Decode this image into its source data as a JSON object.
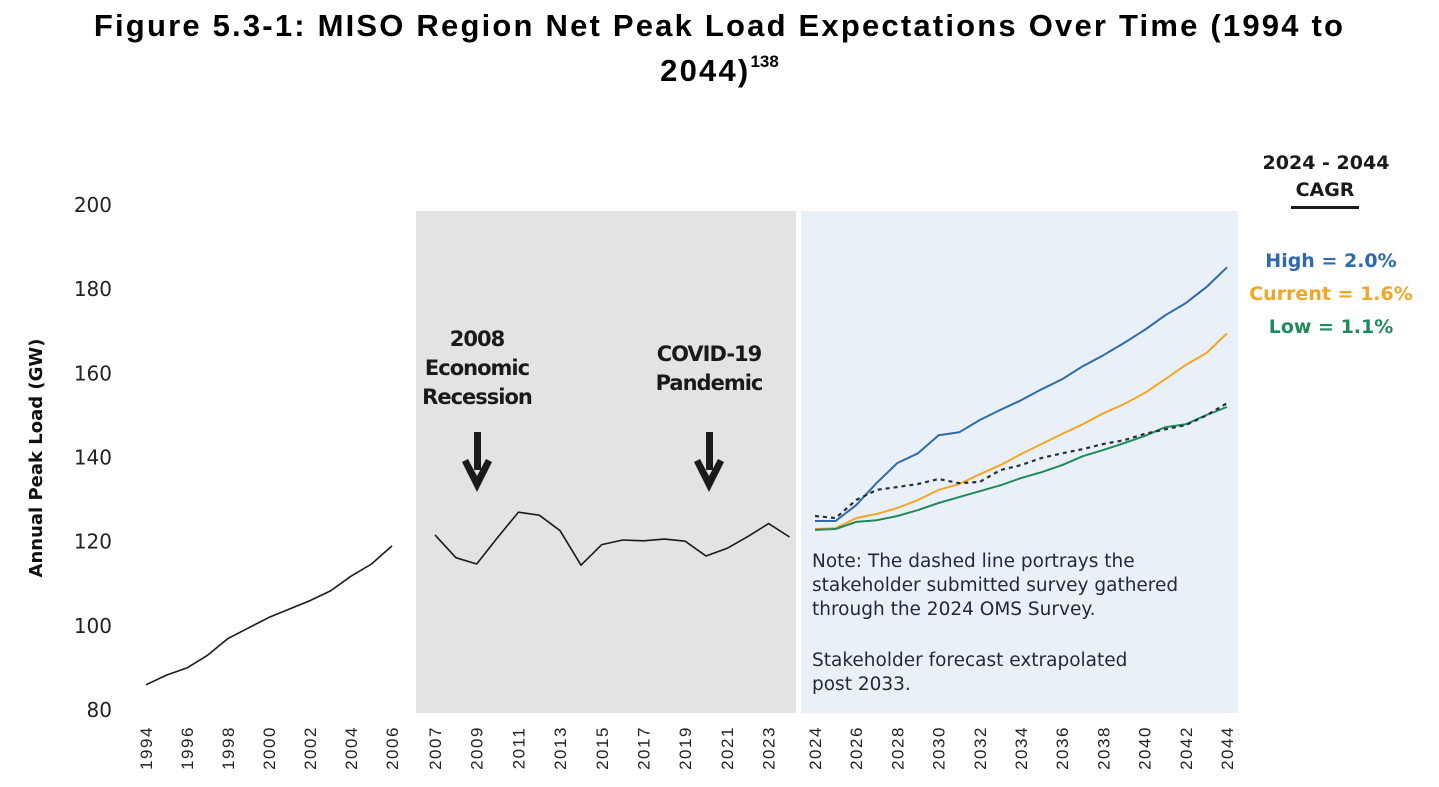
{
  "figure": {
    "title_main": "Figure 5.3-1: MISO Region Net Peak Load Expectations Over Time (1994 to",
    "title_cont": "2044)",
    "footnote_ref": "138"
  },
  "colors": {
    "historical": "#1a1a1a",
    "high": "#2f69ac",
    "current": "#f5a524",
    "low": "#1f8a5b",
    "survey": "#2b2f3a",
    "gray_panel": "#e3e3e5",
    "forecast_panel": "#eaf0f7"
  },
  "annotations": {
    "recession": [
      "2008",
      "Economic",
      "Recession"
    ],
    "covid": [
      "COVID-19",
      "Pandemic"
    ],
    "note_lines": [
      "Note: The dashed line portrays the",
      "stakeholder submitted survey gathered",
      "through the 2024 OMS Survey.",
      "",
      "Stakeholder forecast extrapolated",
      "post 2033."
    ]
  },
  "legend": {
    "heading": [
      "2024 - 2044",
      "CAGR"
    ],
    "items": [
      {
        "key": "high",
        "label": "High = 2.0%"
      },
      {
        "key": "current",
        "label": "Current = 1.6%"
      },
      {
        "key": "low",
        "label": "Low = 1.1%"
      }
    ]
  },
  "chart_data": {
    "type": "line",
    "title": "MISO Region Net Peak Load Expectations Over Time (1994 to 2044)",
    "xlabel": "",
    "ylabel": "Annual Peak Load (GW)",
    "ylim": [
      80,
      200
    ],
    "yticks": [
      80,
      100,
      120,
      140,
      160,
      180,
      200
    ],
    "grid": false,
    "legend_position": "right",
    "panels": [
      {
        "name": "historical-early",
        "xticks": [
          "1994",
          "1996",
          "1998",
          "2000",
          "2002",
          "2004",
          "2006"
        ],
        "series": [
          {
            "name": "Historical",
            "key": "historical",
            "x": [
              1994,
              1995,
              1996,
              1997,
              1998,
              1999,
              2000,
              2001,
              2002,
              2003,
              2004,
              2005,
              2006
            ],
            "values": [
              86,
              88.3,
              90,
              93,
              97,
              99.5,
              102,
              104,
              106,
              108.3,
              111.8,
              114.7,
              119
            ]
          }
        ]
      },
      {
        "name": "historical-recent",
        "xticks": [
          "2007",
          "2009",
          "2011",
          "2013",
          "2015",
          "2017",
          "2019",
          "2021",
          "2023"
        ],
        "series": [
          {
            "name": "Historical",
            "key": "historical",
            "x": [
              2007,
              2008,
              2009,
              2010,
              2011,
              2012,
              2013,
              2014,
              2015,
              2016,
              2017,
              2018,
              2019,
              2020,
              2021,
              2022,
              2023,
              2024
            ],
            "values": [
              121.6,
              116.2,
              114.7,
              121,
              127,
              126.3,
              122.6,
              114.4,
              119.3,
              120.4,
              120.2,
              120.6,
              120.1,
              116.6,
              118.4,
              121.2,
              124.3,
              121.1
            ]
          }
        ]
      },
      {
        "name": "forecast",
        "xticks": [
          "2024",
          "2026",
          "2028",
          "2030",
          "2032",
          "2034",
          "2036",
          "2038",
          "2040",
          "2042",
          "2044"
        ],
        "x": [
          2024,
          2025,
          2026,
          2027,
          2028,
          2029,
          2030,
          2031,
          2032,
          2033,
          2034,
          2035,
          2036,
          2037,
          2038,
          2039,
          2040,
          2041,
          2042,
          2043,
          2044
        ],
        "series": [
          {
            "name": "High",
            "key": "high",
            "dashed": false,
            "values": [
              124.9,
              124.9,
              128.7,
              134,
              138.7,
              141,
              145.3,
              146,
              148.9,
              151.3,
              153.6,
              156.2,
              158.6,
              161.7,
              164.3,
              167.2,
              170.3,
              173.8,
              176.7,
              180.5,
              185.2
            ]
          },
          {
            "name": "Current",
            "key": "current",
            "dashed": false,
            "values": [
              123,
              123.2,
              125.6,
              126.6,
              128,
              129.9,
              132.3,
              133.7,
              136,
              138.2,
              140.8,
              143.2,
              145.6,
              147.9,
              150.5,
              152.7,
              155.3,
              158.6,
              162,
              164.8,
              169.5
            ]
          },
          {
            "name": "Low",
            "key": "low",
            "dashed": false,
            "values": [
              122.8,
              123,
              124.7,
              125.1,
              126.1,
              127.5,
              129.2,
              130.6,
              132,
              133.4,
              135.1,
              136.5,
              138.2,
              140.3,
              141.8,
              143.4,
              145.1,
              147.2,
              147.9,
              150.1,
              152
            ]
          },
          {
            "name": "Stakeholder Survey (OMS 2024)",
            "key": "survey",
            "dashed": true,
            "values": [
              126.1,
              125.6,
              129.9,
              132.3,
              133,
              133.7,
              134.9,
              133.9,
              134.2,
              137,
              138.2,
              139.9,
              141,
              142,
              143.2,
              144.1,
              145.6,
              146.7,
              147.7,
              150,
              152.9
            ]
          }
        ]
      }
    ],
    "annotations": [
      "2008 Economic Recession",
      "COVID-19 Pandemic"
    ],
    "note": "The dashed line portrays the stakeholder submitted survey gathered through the 2024 OMS Survey. Stakeholder forecast extrapolated post 2033.",
    "cagr_2024_2044": {
      "High": "2.0%",
      "Current": "1.6%",
      "Low": "1.1%"
    }
  }
}
